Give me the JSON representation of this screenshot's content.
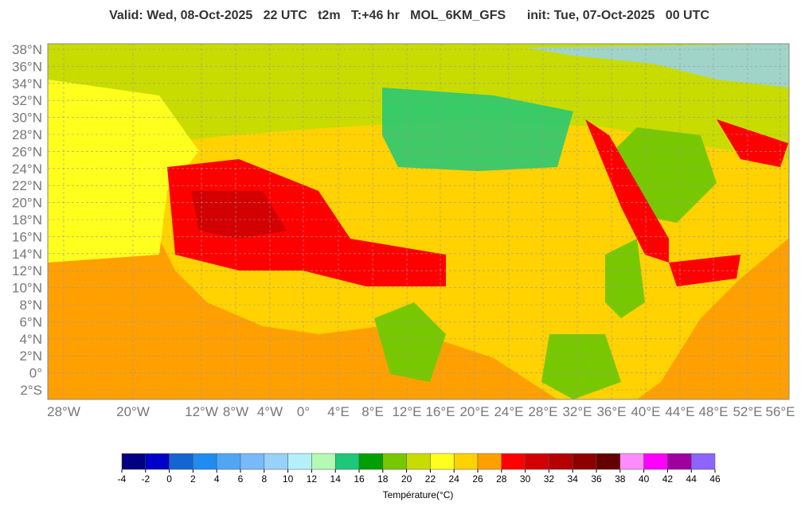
{
  "header": {
    "title": "Valid: Wed, 08-Oct-2025   22 UTC   t2m   T:+46 hr   MOL_6KM_GFS      init: Tue, 07-Oct-2025   00 UTC"
  },
  "map": {
    "lat_labels": [
      "38°N",
      "36°N",
      "34°N",
      "32°N",
      "30°N",
      "28°N",
      "26°N",
      "24°N",
      "22°N",
      "20°N",
      "18°N",
      "16°N",
      "14°N",
      "12°N",
      "10°N",
      "8°N",
      "6°N",
      "4°N",
      "2°N",
      "0°",
      "2°S"
    ],
    "lon_labels": [
      "28°W",
      "20°W",
      "12°W",
      "8°W",
      "4°W",
      "0°",
      "4°E",
      "8°E",
      "12°E",
      "16°E",
      "20°E",
      "24°E",
      "28°E",
      "32°E",
      "36°E",
      "40°E",
      "44°E",
      "48°E",
      "52°E",
      "56°E"
    ]
  },
  "colorbar": {
    "title": "Température(°C)",
    "colors": [
      "#000080",
      "#0000c8",
      "#1464d2",
      "#1e8cf0",
      "#50a5f5",
      "#78b9fa",
      "#96d2fa",
      "#b4f0fa",
      "#b4fab4",
      "#1ec878",
      "#00a000",
      "#78c800",
      "#c8dc00",
      "#ffff1e",
      "#ffd200",
      "#ffa000",
      "#ff0000",
      "#d20000",
      "#b40000",
      "#8c0000",
      "#640000",
      "#ff8cff",
      "#ff00ff",
      "#a000a0",
      "#8c64ff"
    ],
    "ticks": [
      -4,
      -2,
      0,
      2,
      4,
      6,
      8,
      10,
      12,
      14,
      16,
      18,
      20,
      22,
      24,
      26,
      28,
      30,
      32,
      34,
      36,
      38,
      40,
      42,
      44,
      46
    ]
  }
}
